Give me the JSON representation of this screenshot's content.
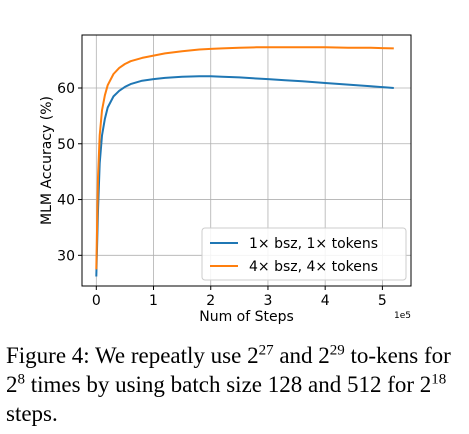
{
  "chart_data": {
    "type": "line",
    "title": "",
    "xlabel": "Num of Steps",
    "ylabel": "MLM Accuracy (%)",
    "x_offset_label": "1e5",
    "xlim": [
      -0.25,
      5.5
    ],
    "ylim": [
      24.5,
      69.5
    ],
    "xticks": [
      0,
      1,
      2,
      3,
      4,
      5
    ],
    "yticks": [
      30,
      40,
      50,
      60
    ],
    "grid": true,
    "legend_position": "lower-right",
    "series": [
      {
        "name": "1× bsz, 1× tokens",
        "color": "#1f77b4",
        "x": [
          0.0,
          0.03,
          0.06,
          0.1,
          0.15,
          0.2,
          0.3,
          0.4,
          0.5,
          0.6,
          0.8,
          1.0,
          1.2,
          1.5,
          1.8,
          2.0,
          2.2,
          2.5,
          2.8,
          3.0,
          3.3,
          3.6,
          4.0,
          4.4,
          4.8,
          5.2
        ],
        "y": [
          26.2,
          38.0,
          46.5,
          51.5,
          54.5,
          56.5,
          58.5,
          59.5,
          60.2,
          60.7,
          61.3,
          61.6,
          61.8,
          62.0,
          62.1,
          62.1,
          62.0,
          61.9,
          61.7,
          61.6,
          61.4,
          61.2,
          60.9,
          60.6,
          60.3,
          60.0
        ]
      },
      {
        "name": "4× bsz, 4× tokens",
        "color": "#ff7f0e",
        "x": [
          0.0,
          0.03,
          0.06,
          0.1,
          0.15,
          0.2,
          0.3,
          0.4,
          0.5,
          0.6,
          0.8,
          1.0,
          1.2,
          1.5,
          1.8,
          2.0,
          2.2,
          2.5,
          2.8,
          3.0,
          3.3,
          3.6,
          4.0,
          4.4,
          4.8,
          5.2
        ],
        "y": [
          27.5,
          44.0,
          51.5,
          56.0,
          58.7,
          60.5,
          62.5,
          63.6,
          64.3,
          64.8,
          65.4,
          65.8,
          66.2,
          66.6,
          66.9,
          67.0,
          67.1,
          67.2,
          67.3,
          67.3,
          67.3,
          67.3,
          67.3,
          67.2,
          67.2,
          67.1
        ]
      }
    ]
  },
  "caption": {
    "prefix": "Figure 4: We repeatly use 2",
    "sup1": "27",
    "mid1": " and 2",
    "sup2": "29",
    "mid2": " to-kens for 2",
    "sup3": "8",
    "mid3": " times by using batch size 128 and 512 for 2",
    "sup4": "18",
    "suffix": " steps."
  }
}
